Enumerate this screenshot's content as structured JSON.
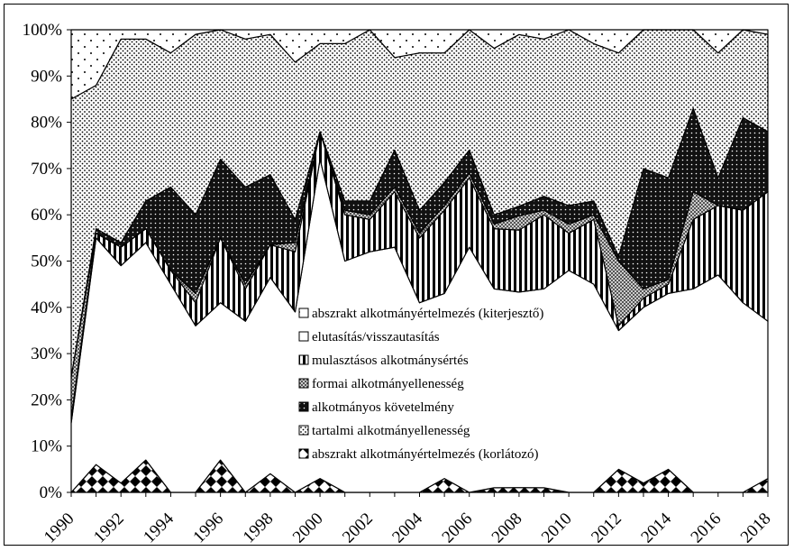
{
  "chart_data": {
    "type": "area",
    "stacked": true,
    "normalized": true,
    "x": [
      1990,
      1991,
      1992,
      1993,
      1994,
      1995,
      1996,
      1997,
      1998,
      1999,
      2000,
      2001,
      2002,
      2003,
      2004,
      2005,
      2006,
      2007,
      2008,
      2009,
      2010,
      2011,
      2012,
      2013,
      2014,
      2015,
      2016,
      2017,
      2018
    ],
    "x_ticks": [
      "1990",
      "1992",
      "1994",
      "1996",
      "1998",
      "2000",
      "2002",
      "2004",
      "2006",
      "2008",
      "2010",
      "2012",
      "2014",
      "2016",
      "2018"
    ],
    "y_ticks": [
      "0%",
      "10%",
      "20%",
      "30%",
      "40%",
      "50%",
      "60%",
      "70%",
      "80%",
      "90%",
      "100%"
    ],
    "ylim": [
      0,
      100
    ],
    "xlim": [
      1990,
      2018
    ],
    "legend_position": "center",
    "series": [
      {
        "name": "abszrakt alkotmányértelmezés (korlátozó)",
        "label": "abszrakt alkotmányértelmezés (korlátozó)",
        "pattern": "diamond",
        "values": [
          0,
          6,
          2,
          7,
          0,
          0,
          7,
          0,
          4,
          0,
          3,
          0,
          0,
          0,
          0,
          3,
          0,
          1,
          1,
          1,
          0,
          0,
          5,
          2,
          5,
          0,
          0,
          0,
          3
        ]
      },
      {
        "name": "elutasítás/visszautasítás",
        "label": "elutasítás/visszautasítás",
        "pattern": "white",
        "values": [
          15,
          49,
          47,
          47,
          45,
          36,
          34,
          37,
          42,
          39,
          69,
          50,
          52,
          53,
          41,
          40,
          53,
          43,
          41,
          43,
          48,
          45,
          30,
          38,
          38,
          44,
          47,
          41,
          34
        ]
      },
      {
        "name": "mulasztásos alkotmánysértés",
        "label": "mulasztásos alkotmánysértés",
        "pattern": "vstripe",
        "values": [
          1,
          1,
          4,
          3,
          3,
          5,
          14,
          7,
          7,
          13,
          6,
          10,
          7,
          12,
          14,
          18,
          15,
          13,
          13,
          16,
          8,
          14,
          1,
          2,
          2,
          15,
          15,
          20,
          28
        ]
      },
      {
        "name": "formai alkotmányellenesség",
        "label": "formai alkotmányellenesség",
        "pattern": "checker",
        "values": [
          9,
          0,
          0,
          0,
          0,
          2,
          0,
          1,
          0,
          2,
          0,
          1,
          1,
          1,
          1,
          1,
          1,
          1,
          3,
          1,
          2,
          1,
          14,
          2,
          1,
          6,
          0,
          0,
          0
        ]
      },
      {
        "name": "alkotmányos követelmény",
        "label": "alkotmányos követelmény",
        "pattern": "darkdots",
        "values": [
          0,
          1,
          1,
          6,
          18,
          17,
          17,
          21,
          15,
          5,
          0,
          2,
          3,
          8,
          5,
          5,
          5,
          2,
          2,
          3,
          4,
          3,
          1,
          26,
          22,
          18,
          6,
          20,
          13
        ]
      },
      {
        "name": "tartalmi alkotmányellenesség",
        "label": "tartalmi alkotmányellenesség",
        "pattern": "lightdots",
        "values": [
          60,
          31,
          44,
          35,
          29,
          39,
          28,
          32,
          30,
          34,
          19,
          34,
          37,
          20,
          34,
          28,
          26,
          36,
          36,
          34,
          38,
          34,
          44,
          30,
          32,
          17,
          27,
          19,
          21
        ]
      },
      {
        "name": "abszrakt alkotmányértelmezés (kiterjesztő)",
        "label": "abszrakt alkotmányértelmezés (kiterjesztő)",
        "pattern": "sparsedots",
        "values": [
          15,
          12,
          2,
          2,
          5,
          1,
          0,
          2,
          1,
          7,
          3,
          3,
          0,
          6,
          5,
          5,
          0,
          4,
          1,
          2,
          0,
          3,
          5,
          0,
          0,
          0,
          5,
          0,
          1
        ]
      }
    ],
    "legend_order": [
      6,
      1,
      2,
      3,
      4,
      5,
      0
    ]
  }
}
